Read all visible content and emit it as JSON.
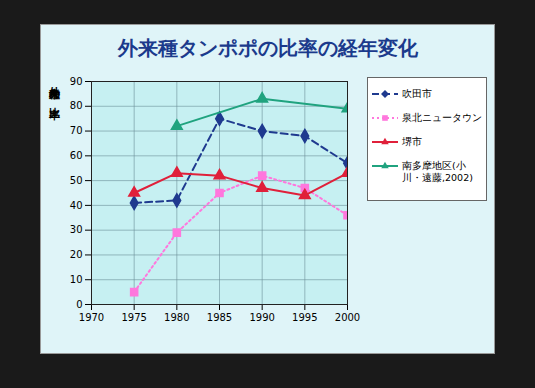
{
  "chart_data": {
    "type": "line",
    "title": "外来種タンポポの比率の経年変化",
    "y_label": "外来種の比率",
    "x": [
      1975,
      1980,
      1985,
      1990,
      1995,
      2000
    ],
    "xlim": [
      1970,
      2000
    ],
    "xticks": [
      1970,
      1975,
      1980,
      1985,
      1990,
      1995,
      2000
    ],
    "ylim": [
      0,
      90
    ],
    "yticks": [
      0,
      10,
      20,
      30,
      40,
      50,
      60,
      70,
      80,
      90
    ],
    "grid": true,
    "legend": "right",
    "series": [
      {
        "name": "吹田市",
        "color": "#1f3a8f",
        "marker": "diamond",
        "line_style": "dashed",
        "values": [
          41,
          42,
          75,
          70,
          68,
          57
        ]
      },
      {
        "name": "泉北ニュータウン",
        "color": "#ff77dd",
        "marker": "square",
        "line_style": "dotted",
        "values": [
          5,
          29,
          45,
          52,
          47,
          36
        ]
      },
      {
        "name": "堺市",
        "color": "#e0203a",
        "marker": "triangle",
        "line_style": "solid",
        "values": [
          45,
          53,
          52,
          47,
          44,
          53
        ]
      },
      {
        "name": "南多摩地区(小川・遠藤,2002)",
        "color": "#20a37f",
        "marker": "triangle",
        "line_style": "solid",
        "x": [
          1980,
          1990,
          2000
        ],
        "values": [
          72,
          83,
          79
        ]
      }
    ]
  }
}
